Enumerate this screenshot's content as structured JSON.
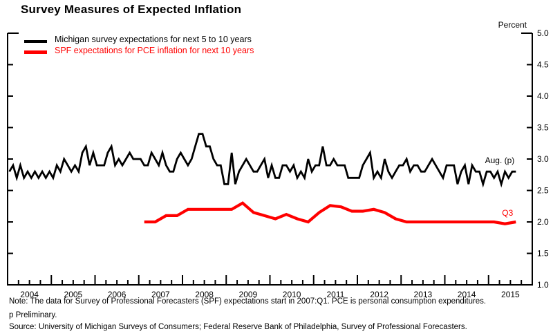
{
  "page_title": "Survey Measures of Expected Inflation",
  "colors": {
    "michigan_line": "#000000",
    "spf_line": "#ff0000",
    "axis": "#000000",
    "background": "#ffffff"
  },
  "legend": [
    {
      "label": "Michigan survey expectations for next 5 to 10 years",
      "color": "#000000"
    },
    {
      "label": "SPF expectations for PCE inflation for next 10 years",
      "color": "#ff0000"
    }
  ],
  "notes": {
    "note": "Note:  The data for Survey of Professional Forecasters (SPF) expectations start in 2007:Q1.  PCE is personal consumption expenditures.",
    "preliminary": "p Preliminary.",
    "source": "Source:  University of Michigan Surveys of Consumers; Federal Reserve Bank of Philadelphia, Survey of Professional Forecasters."
  },
  "chart_data": {
    "type": "line",
    "title": "Survey Measures of Expected Inflation",
    "ylabel": "Percent",
    "ylim": [
      1.0,
      5.0
    ],
    "xlim": [
      2004,
      2016
    ],
    "y_ticks": [
      1.0,
      1.5,
      2.0,
      2.5,
      3.0,
      3.5,
      4.0,
      4.5,
      5.0
    ],
    "x_year_labels": [
      2004,
      2005,
      2006,
      2007,
      2008,
      2009,
      2010,
      2011,
      2012,
      2013,
      2014,
      2015
    ],
    "grid": false,
    "legend_position": "top-left",
    "annotations": [
      {
        "text": "Aug. (p)",
        "color": "#000000",
        "series": 0
      },
      {
        "text": "Q3",
        "color": "#ff0000",
        "series": 1
      }
    ],
    "series": [
      {
        "name": "Michigan survey expectations for next 5 to 10 years",
        "color": "#000000",
        "frequency": "monthly",
        "start": "2004-01",
        "end": "2015-08",
        "x_start_year": 2004,
        "points_per_year": 12,
        "values": [
          2.8,
          2.9,
          2.7,
          2.9,
          2.7,
          2.8,
          2.7,
          2.8,
          2.7,
          2.8,
          2.7,
          2.8,
          2.7,
          2.9,
          2.8,
          3.0,
          2.9,
          2.8,
          2.9,
          2.8,
          3.1,
          3.2,
          2.9,
          3.1,
          2.9,
          2.9,
          2.9,
          3.1,
          3.2,
          2.9,
          3.0,
          2.9,
          3.0,
          3.1,
          3.0,
          3.0,
          3.0,
          2.9,
          2.9,
          3.1,
          3.0,
          2.9,
          3.1,
          2.9,
          2.8,
          2.8,
          3.0,
          3.1,
          3.0,
          2.9,
          3.0,
          3.2,
          3.4,
          3.4,
          3.2,
          3.2,
          3.0,
          2.9,
          2.9,
          2.6,
          2.6,
          3.1,
          2.6,
          2.8,
          2.9,
          3.0,
          2.9,
          2.8,
          2.8,
          2.9,
          3.0,
          2.7,
          2.9,
          2.7,
          2.7,
          2.9,
          2.9,
          2.8,
          2.9,
          2.7,
          2.8,
          2.7,
          3.0,
          2.8,
          2.9,
          2.9,
          3.2,
          2.9,
          2.9,
          3.0,
          2.9,
          2.9,
          2.9,
          2.7,
          2.7,
          2.7,
          2.7,
          2.9,
          3.0,
          3.1,
          2.7,
          2.8,
          2.7,
          3.0,
          2.8,
          2.7,
          2.8,
          2.9,
          2.9,
          3.0,
          2.8,
          2.9,
          2.9,
          2.8,
          2.8,
          2.9,
          3.0,
          2.9,
          2.8,
          2.7,
          2.9,
          2.9,
          2.9,
          2.6,
          2.8,
          2.9,
          2.6,
          2.9,
          2.8,
          2.8,
          2.6,
          2.8,
          2.8,
          2.7,
          2.8,
          2.6,
          2.8,
          2.7,
          2.8,
          2.8
        ]
      },
      {
        "name": "SPF expectations for PCE inflation for next 10 years",
        "color": "#ff0000",
        "frequency": "quarterly",
        "start": "2007Q1",
        "end": "2015Q3",
        "x_start_year": 2007,
        "points_per_year": 4,
        "values": [
          2.0,
          2.0,
          2.1,
          2.1,
          2.2,
          2.2,
          2.2,
          2.2,
          2.2,
          2.3,
          2.15,
          2.1,
          2.05,
          2.12,
          2.05,
          2.0,
          2.15,
          2.26,
          2.24,
          2.17,
          2.17,
          2.2,
          2.15,
          2.05,
          2.0,
          2.0,
          2.0,
          2.0,
          2.0,
          2.0,
          2.0,
          2.0,
          2.0,
          1.97,
          2.0
        ]
      }
    ]
  }
}
